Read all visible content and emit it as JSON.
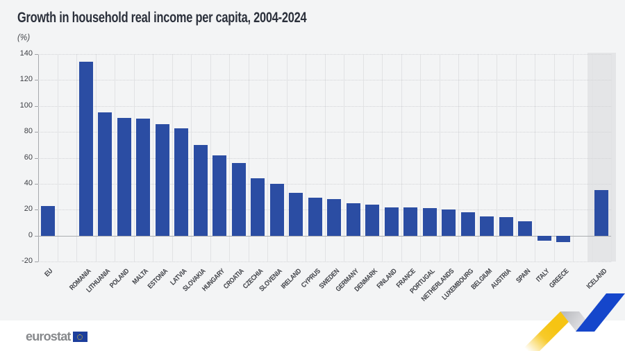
{
  "header": {
    "title": "Growth in household real income per capita, 2004-2024",
    "subtitle": "(%)"
  },
  "footer": {
    "logo_text": "eurostat",
    "flag_icon": "eu-flag-icon"
  },
  "colors": {
    "panel_background": "#f3f4f5",
    "bar": "#2b4da3",
    "highlight_band": "#e4e5e7",
    "zero_line": "#abadb0",
    "gridline": "#d2d3d6",
    "title_text": "#2b303b",
    "label_text": "#3e4046",
    "logo_gray": "#87898c",
    "flag_blue": "#1c3e9c",
    "ribbon_blue": "#1546cb",
    "ribbon_yellow": "#f6c413"
  },
  "chart_data": {
    "type": "bar",
    "title": "Growth in household real income per capita, 2004-2024",
    "unit_label": "(%)",
    "xlabel": "",
    "ylabel": "(%)",
    "ylim": [
      -20,
      140
    ],
    "yticks": [
      140,
      120,
      100,
      80,
      60,
      40,
      20,
      0,
      -20
    ],
    "grid": "horizontal-dotted",
    "legend": null,
    "groups": [
      {
        "name": "eu-aggregate",
        "categories": [
          "EU"
        ],
        "values": [
          23
        ]
      },
      {
        "name": "eu-countries",
        "categories": [
          "ROMANIA",
          "LITHUANIA",
          "POLAND",
          "MALTA",
          "ESTONIA",
          "LATVIA",
          "SLOVAKIA",
          "HUNGARY",
          "CROATIA",
          "CZECHIA",
          "SLOVENIA",
          "IRELAND",
          "CYPRUS",
          "SWEDEN",
          "GERMANY",
          "DENMARK",
          "FINLAND",
          "FRANCE",
          "PORTUGAL",
          "NETHERLANDS",
          "LUXEMBOURG",
          "BELGIUM",
          "AUSTRIA",
          "SPAIN",
          "ITALY",
          "GREECE"
        ],
        "values": [
          134,
          95,
          91,
          90,
          86,
          83,
          70,
          62,
          56,
          44,
          40,
          33,
          29,
          28,
          25,
          24,
          22,
          22,
          21,
          20,
          18,
          15,
          14,
          11,
          -4,
          -5
        ]
      },
      {
        "name": "non-eu",
        "categories": [
          "ICELAND"
        ],
        "values": [
          35
        ],
        "highlighted": true
      }
    ]
  }
}
